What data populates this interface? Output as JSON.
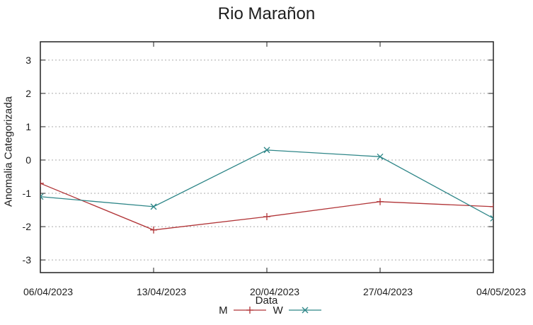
{
  "chart_data": {
    "type": "line",
    "title": "Rio Marañon",
    "xlabel": "Data",
    "ylabel": "Anomalia Categorizada",
    "categories": [
      "06/04/2023",
      "13/04/2023",
      "20/04/2023",
      "27/04/2023",
      "04/05/2023"
    ],
    "series": [
      {
        "name": "M",
        "marker": "plus",
        "color": "#b13437",
        "values": [
          -0.7,
          -2.1,
          -1.7,
          -1.25,
          -1.4
        ]
      },
      {
        "name": "W",
        "marker": "cross",
        "color": "#2e8688",
        "values": [
          -1.1,
          -1.4,
          0.3,
          0.1,
          -1.75
        ]
      }
    ],
    "yticks": [
      -3,
      -2,
      -1,
      0,
      1,
      2,
      3
    ],
    "ylim": [
      -3.38,
      3.55
    ],
    "grid": "horizontal-dotted",
    "legend_position": "bottom-center",
    "axis_color": "#222222",
    "grid_color": "#ababab",
    "text_color": "#1d1d1d"
  }
}
